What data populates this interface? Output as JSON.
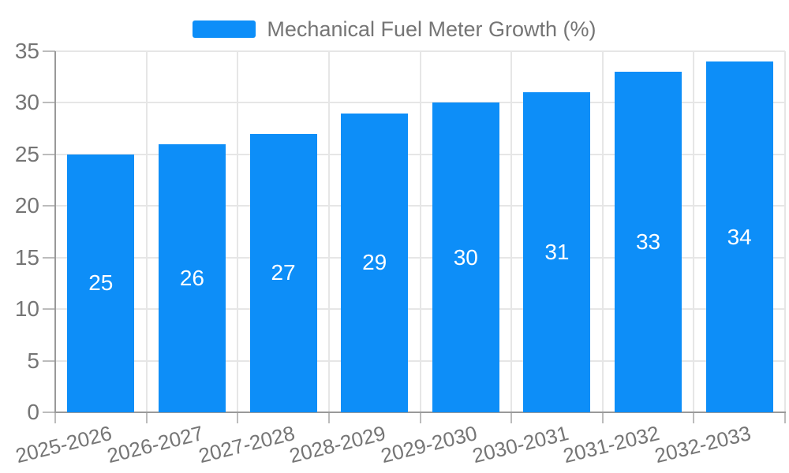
{
  "legend": {
    "items": [
      {
        "label": "Mechanical Fuel Meter Growth (%)",
        "swatch_color": "#0d8ef8"
      }
    ]
  },
  "chart_data": {
    "type": "bar",
    "title": "Mechanical Fuel Meter Growth (%)",
    "categories": [
      "2025-2026",
      "2026-2027",
      "2027-2028",
      "2028-2029",
      "2029-2030",
      "2030-2031",
      "2031-2032",
      "2032-2033"
    ],
    "series": [
      {
        "name": "Mechanical Fuel Meter Growth (%)",
        "values": [
          25,
          26,
          27,
          29,
          30,
          31,
          33,
          34
        ]
      }
    ],
    "bar_value_labels": [
      "25",
      "26",
      "27",
      "29",
      "30",
      "31",
      "33",
      "34"
    ],
    "xlabel": "",
    "ylabel": "",
    "ylim": [
      0,
      35
    ],
    "y_ticks": [
      0,
      5,
      10,
      15,
      20,
      25,
      30,
      35
    ],
    "grid": "horizontal-and-vertical",
    "legend_position": "top-center",
    "x_label_rotation_deg": -14,
    "bar_color": "#0d8ef8",
    "bar_label_color": "#ffffff",
    "axis_text_color": "#757575"
  },
  "style": {
    "background": "#ffffff",
    "grid_color": "#e6e6e6",
    "axis_color": "#999999",
    "tick_color": "#bcbcbc"
  }
}
